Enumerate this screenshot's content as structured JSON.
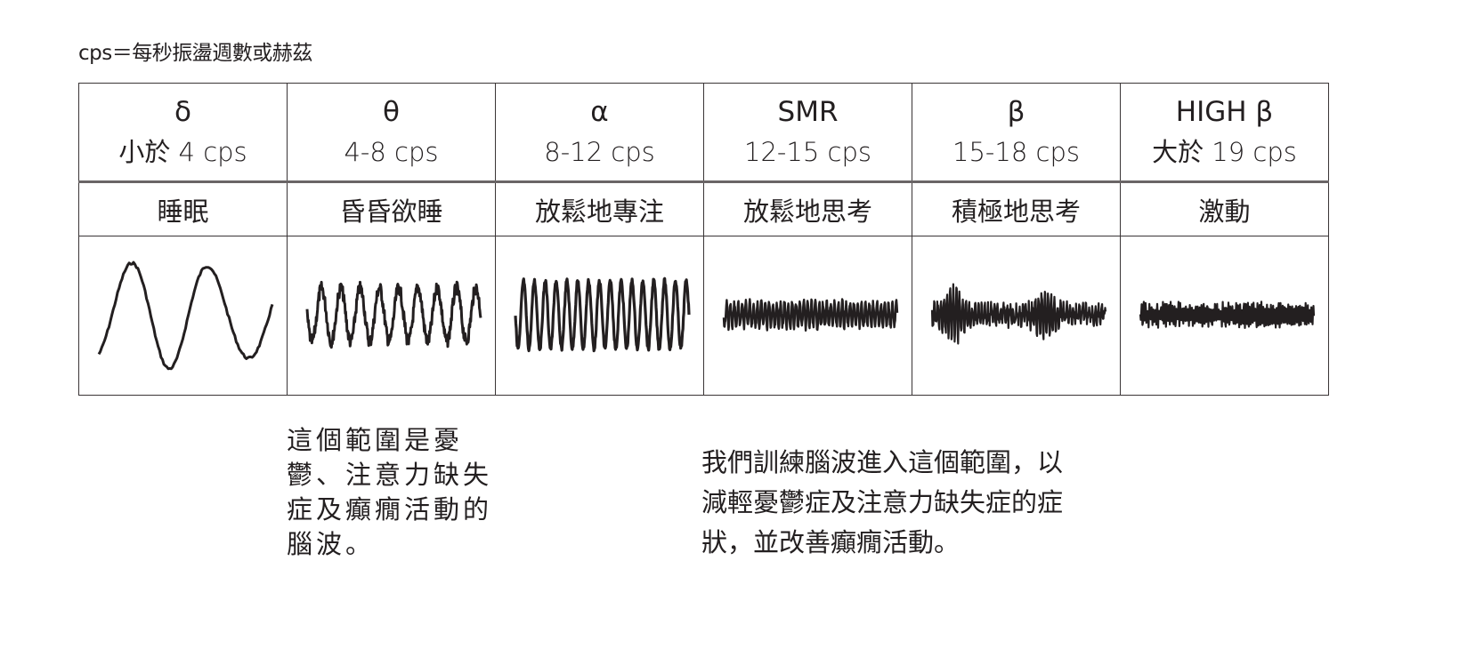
{
  "note": "cps＝每秒振盪週數或赫茲",
  "columns": [
    {
      "symbol": "δ",
      "range": "小於 4 cps",
      "state": "睡眠"
    },
    {
      "symbol": "θ",
      "range": "4-8 cps",
      "state": "昏昏欲睡"
    },
    {
      "symbol": "α",
      "range": "8-12 cps",
      "state": "放鬆地專注"
    },
    {
      "symbol": "SMR",
      "range": "12-15 cps",
      "state": "放鬆地思考"
    },
    {
      "symbol": "β",
      "range": "15-18 cps",
      "state": "積極地思考"
    },
    {
      "symbol": "HIGH β",
      "range": "大於 19 cps",
      "state": "激動"
    }
  ],
  "left_text": [
    "這個範圍是憂",
    "鬱、注意力缺失",
    "症及癲癇活動的",
    "腦波。"
  ],
  "right_text": [
    "我們訓練腦波進入這個範圍，以",
    "減輕憂鬱症及注意力缺失症的症",
    "狀，並改善癲癇活動。"
  ],
  "colors": {
    "ink": "#231f20",
    "border": "#3a3536"
  }
}
